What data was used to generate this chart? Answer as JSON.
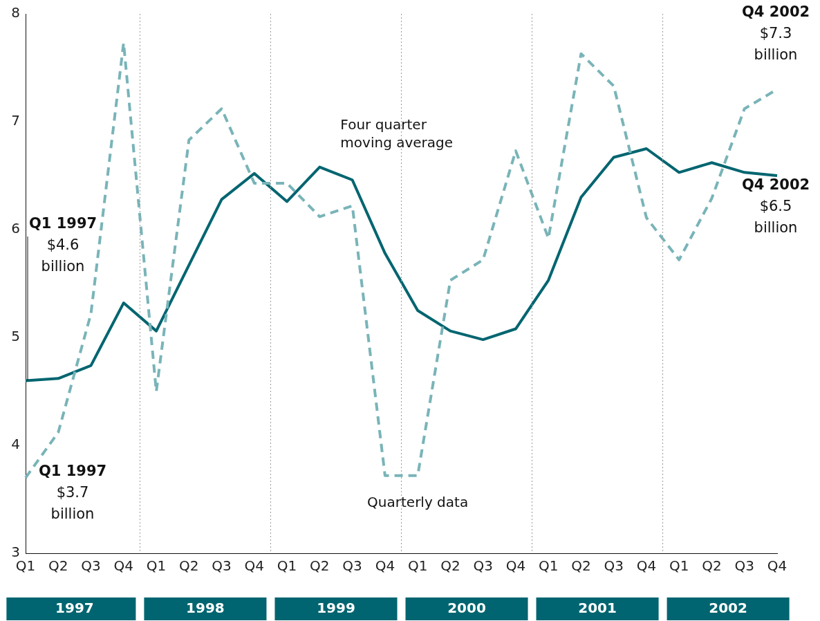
{
  "chart_data": {
    "type": "line",
    "categories": [
      "Q1",
      "Q2",
      "Q3",
      "Q4",
      "Q1",
      "Q2",
      "Q3",
      "Q4",
      "Q1",
      "Q2",
      "Q3",
      "Q4",
      "Q1",
      "Q2",
      "Q3",
      "Q4",
      "Q1",
      "Q2",
      "Q3",
      "Q4",
      "Q1",
      "Q2",
      "Q3",
      "Q4"
    ],
    "series": [
      {
        "name": "Quarterly data",
        "color": "#79b4b8",
        "line_style": "dashed",
        "values": [
          3.7,
          4.12,
          5.22,
          7.73,
          4.5,
          6.83,
          7.12,
          6.43,
          6.43,
          6.12,
          6.22,
          3.72,
          3.72,
          5.53,
          5.72,
          6.73,
          5.92,
          7.63,
          7.33,
          6.11,
          5.72,
          6.29,
          7.12,
          7.3
        ]
      },
      {
        "name": "Four quarter moving average",
        "color": "#006570",
        "line_style": "solid",
        "values": [
          4.6,
          4.62,
          4.74,
          5.32,
          5.06,
          5.67,
          6.28,
          6.52,
          6.26,
          6.58,
          6.46,
          5.78,
          5.25,
          5.06,
          4.98,
          5.08,
          5.53,
          6.3,
          6.67,
          6.75,
          6.53,
          6.62,
          6.53,
          6.5
        ]
      }
    ],
    "ylim": [
      3,
      8
    ],
    "yticks": [
      3,
      4,
      5,
      6,
      7,
      8
    ],
    "grid": "x",
    "legend": false,
    "marker": "none",
    "annotations": [
      "1997",
      "1998",
      "1999",
      "2000",
      "2001",
      "2002",
      {
        "text": "Q1 1997\n$4.6\nbillion",
        "x": "Q1",
        "y": 4.6
      },
      "Q1 1997\n$3.7\nbillion",
      "Q4 2002\n$7.3\nbillion",
      "Q4 2002\n$6.5\nbillion"
    ]
  }
}
